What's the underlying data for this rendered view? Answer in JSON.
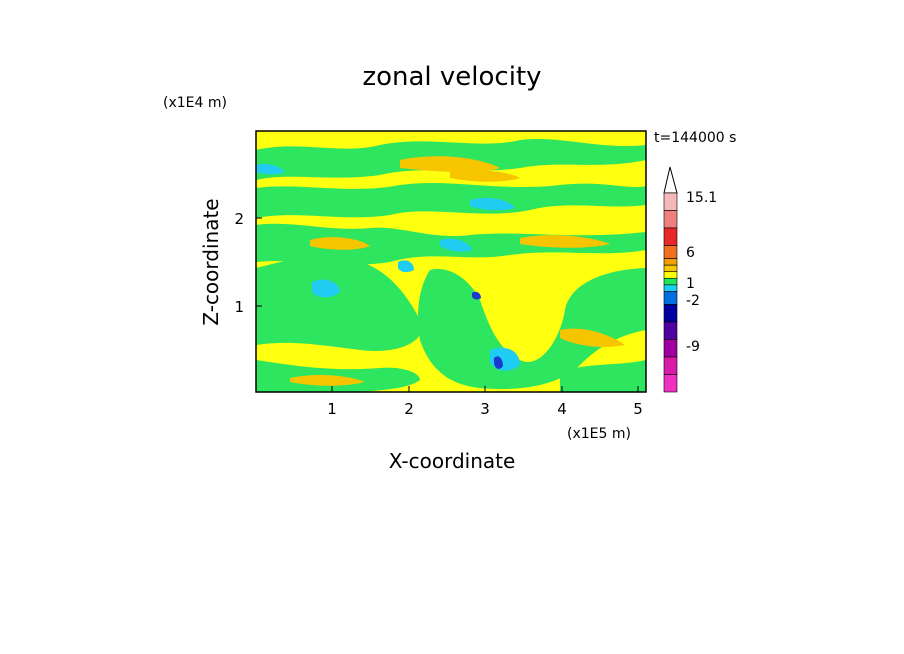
{
  "chart_data": {
    "type": "heatmap",
    "title": "zonal velocity",
    "xlabel": "X-coordinate",
    "ylabel": "Z-coordinate",
    "x_multiplier": "(x1E5 m)",
    "y_multiplier": "(x1E4 m)",
    "time_label": "t=144000 s",
    "xlim": [
      0,
      5.1
    ],
    "ylim": [
      0,
      2.95
    ],
    "x_ticks": [
      1,
      2,
      3,
      4,
      5
    ],
    "y_ticks": [
      1,
      2
    ],
    "colorbar": {
      "labels": [
        "15.1",
        "6",
        "1",
        "-2",
        "-9"
      ],
      "colors": [
        "#f4b8b8",
        "#f08080",
        "#e82828",
        "#f07020",
        "#f0a000",
        "#f5c800",
        "#ffff00",
        "#22e45a",
        "#1ad0f0",
        "#0070e0",
        "#0000a0",
        "#5000a0",
        "#a000a0",
        "#d81aa8",
        "#f030c0"
      ]
    },
    "regions": [
      {
        "level": "green",
        "color": "#2ee55f"
      },
      {
        "level": "yellow",
        "color": "#ffff10"
      },
      {
        "level": "orange",
        "color": "#f7c400"
      },
      {
        "level": "cyan",
        "color": "#20ccf2"
      },
      {
        "level": "blue",
        "color": "#1c3ad0"
      }
    ]
  }
}
